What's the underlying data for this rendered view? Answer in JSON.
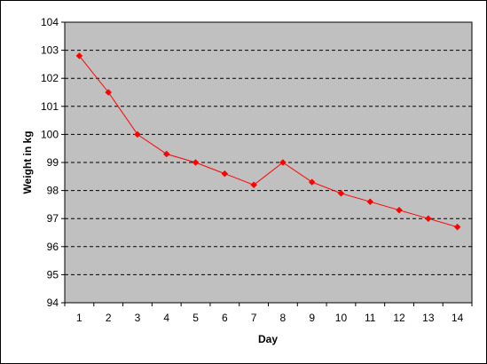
{
  "chart_data": {
    "type": "line",
    "title": "",
    "xlabel": "Day",
    "ylabel": "Weight in kg",
    "categories": [
      "1",
      "2",
      "3",
      "4",
      "5",
      "6",
      "7",
      "8",
      "9",
      "10",
      "11",
      "12",
      "13",
      "14"
    ],
    "series": [
      {
        "values": [
          102.8,
          101.5,
          100.0,
          99.3,
          99.0,
          98.6,
          98.2,
          99.0,
          98.3,
          97.9,
          97.6,
          97.3,
          97.0,
          96.7
        ]
      }
    ],
    "ylim": [
      94,
      104
    ],
    "yticks": [
      "94",
      "95",
      "96",
      "97",
      "98",
      "99",
      "100",
      "101",
      "102",
      "103",
      "104"
    ],
    "grid": "horizontal dashed",
    "legend": "none",
    "colors": {
      "plot_background": "#c0c0c0",
      "series": "#ff0000",
      "frame": "#000000",
      "gridline": "#000000"
    }
  }
}
